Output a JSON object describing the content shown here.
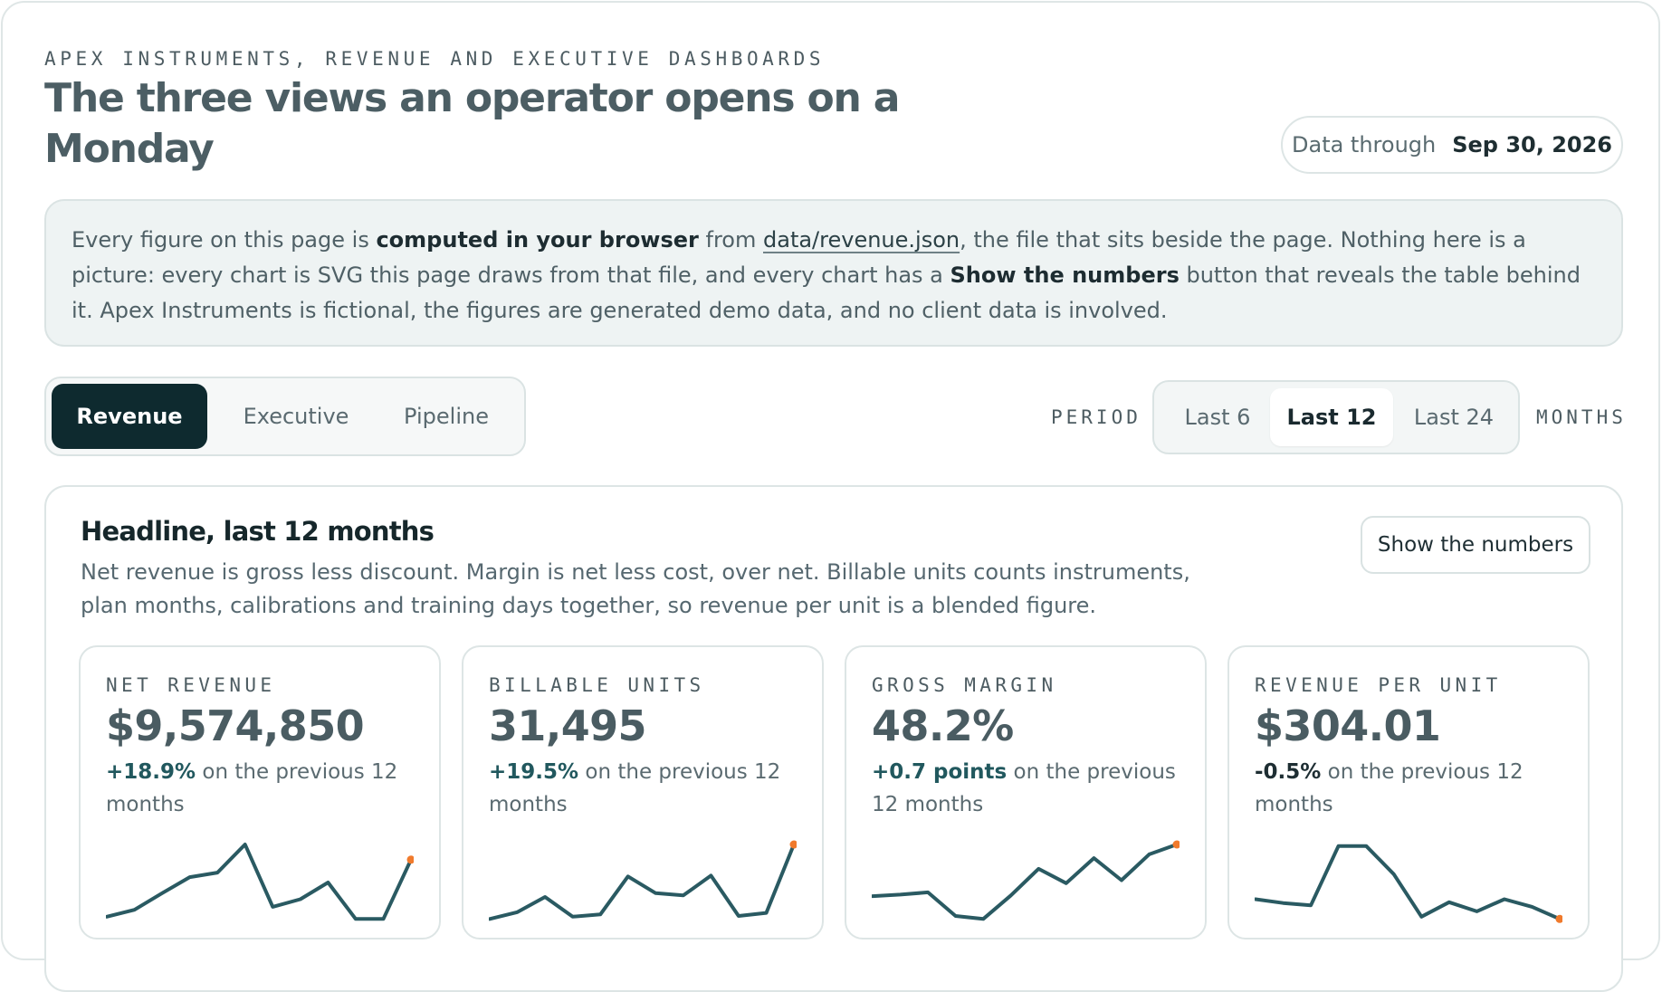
{
  "header": {
    "eyebrow": "APEX INSTRUMENTS, REVENUE AND EXECUTIVE DASHBOARDS",
    "title": "The three views an operator opens on a Monday",
    "data_through_label": "Data through",
    "data_through_date": "Sep 30, 2026"
  },
  "notice": {
    "t1": "Every figure on this page is ",
    "b1": "computed in your browser",
    "t2": " from ",
    "link": "data/revenue.json",
    "t3": ", the file that sits beside the page. Nothing here is a picture: every chart is SVG this page draws from that file, and every chart has a ",
    "b2": "Show the numbers",
    "t4": " button that reveals the table behind it. Apex Instruments is fictional, the figures are generated demo data, and no client data is involved."
  },
  "tabs": [
    {
      "label": "Revenue",
      "active": true
    },
    {
      "label": "Executive",
      "active": false
    },
    {
      "label": "Pipeline",
      "active": false
    }
  ],
  "period": {
    "label": "PERIOD",
    "options": [
      {
        "label": "Last 6",
        "active": false
      },
      {
        "label": "Last 12",
        "active": true
      },
      {
        "label": "Last 24",
        "active": false
      }
    ],
    "unit": "MONTHS"
  },
  "panel": {
    "title": "Headline, last 12 months",
    "description": "Net revenue is gross less discount. Margin is net less cost, over net. Billable units counts instruments, plan months, calibrations and training days together, so revenue per unit is a blended figure.",
    "show_numbers_label": "Show the numbers"
  },
  "kpis": [
    {
      "label": "NET REVENUE",
      "value": "$9,574,850",
      "change": "+18.9%",
      "direction": "up",
      "suffix": " on the previous 12 months",
      "trend": [
        0.05,
        0.14,
        0.36,
        0.57,
        0.63,
        1.0,
        0.18,
        0.28,
        0.5,
        0.02,
        0.02,
        0.8
      ]
    },
    {
      "label": "BILLABLE UNITS",
      "value": "31,495",
      "change": "+19.5%",
      "direction": "up",
      "suffix": " on the previous 12 months",
      "trend": [
        0.02,
        0.11,
        0.31,
        0.05,
        0.08,
        0.58,
        0.36,
        0.33,
        0.59,
        0.06,
        0.1,
        1.0
      ]
    },
    {
      "label": "GROSS MARGIN",
      "value": "48.2%",
      "change": "+0.7 points",
      "direction": "up",
      "suffix": " on the previous 12 months",
      "trend": [
        0.32,
        0.34,
        0.37,
        0.06,
        0.02,
        0.33,
        0.68,
        0.49,
        0.82,
        0.53,
        0.87,
        1.0
      ]
    },
    {
      "label": "REVENUE PER UNIT",
      "value": "$304.01",
      "change": "-0.5%",
      "direction": "down",
      "suffix": " on the previous 12 months",
      "trend": [
        0.28,
        0.23,
        0.2,
        0.98,
        0.98,
        0.61,
        0.05,
        0.24,
        0.12,
        0.28,
        0.18,
        0.02
      ]
    }
  ],
  "colors": {
    "accent": "#0e2a2f",
    "line": "#2a5a62",
    "highlight": "#f07a2c"
  }
}
